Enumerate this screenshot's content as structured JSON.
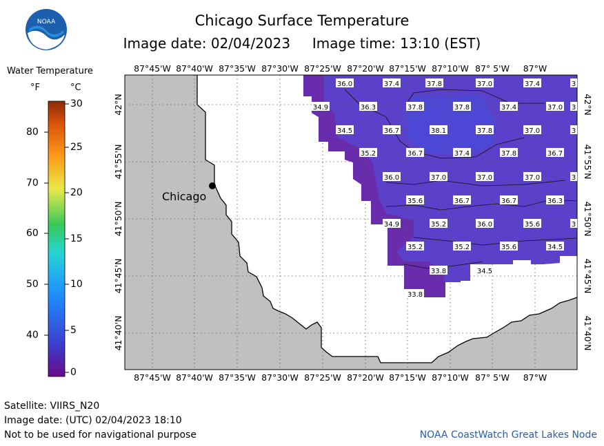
{
  "header": {
    "title": "Chicago Surface Temperature",
    "image_date_label": "Image date: 02/04/2023",
    "image_time_label": "Image time: 13:10 (EST)",
    "logo_text": "NOAA"
  },
  "legend": {
    "title": "Water Temperature",
    "unit_f": "°F",
    "unit_c": "°C",
    "f_labels": [
      "80",
      "70",
      "60",
      "50",
      "40"
    ],
    "c_labels": [
      "30",
      "25",
      "20",
      "15",
      "10",
      "5",
      "0"
    ]
  },
  "map": {
    "top_lon_labels": [
      "87°45'W",
      "87°40'W",
      "87°35'W",
      "87°30'W",
      "87°25'W",
      "87°20'W",
      "87°15'W",
      "87°10'W",
      "87° 5'W",
      "87°W"
    ],
    "bottom_lon_labels": [
      "87°45'W",
      "87°40'W",
      "87°35'W",
      "87°30'W",
      "87°25'W",
      "87°20'W",
      "87°15'W",
      "87°10'W",
      "87° 5'W",
      "87°W"
    ],
    "lat_labels": [
      "42°N",
      "41°55'N",
      "41°50'N",
      "41°45'N",
      "41°40'N"
    ],
    "city": "Chicago",
    "colors": {
      "land": "#c0c0c0",
      "water_warm": "#5a3ec8",
      "water_cool": "#6a2aa8"
    },
    "temperature_labels": [
      [
        "36.0",
        "37.4",
        "37.8",
        "37.0",
        "37.4",
        "3"
      ],
      [
        "34.9",
        "36.3",
        "37.8",
        "37.8",
        "37.4",
        "37.0",
        "3"
      ],
      [
        "34.5",
        "36.7",
        "38.1",
        "37.8",
        "37.0",
        "3"
      ],
      [
        "35.2",
        "36.7",
        "37.4",
        "37.8",
        "36.7"
      ],
      [
        "36.0",
        "37.0",
        "37.0",
        "37.0",
        "3"
      ],
      [
        "35.6",
        "36.7",
        "36.7",
        "36.3"
      ],
      [
        "34.9",
        "35.2",
        "36.0",
        "35.6",
        "3"
      ],
      [
        "35.2",
        "35.2",
        "35.6",
        "34.5"
      ],
      [
        "33.8",
        "34.5"
      ],
      [
        "33.8"
      ]
    ]
  },
  "footer": {
    "satellite": "Satellite: VIIRS_N20",
    "utc_date": "Image date: (UTC) 02/04/2023  18:10",
    "disclaimer": "Not to be used for navigational purpose",
    "credit": "NOAA CoastWatch Great Lakes Node"
  }
}
